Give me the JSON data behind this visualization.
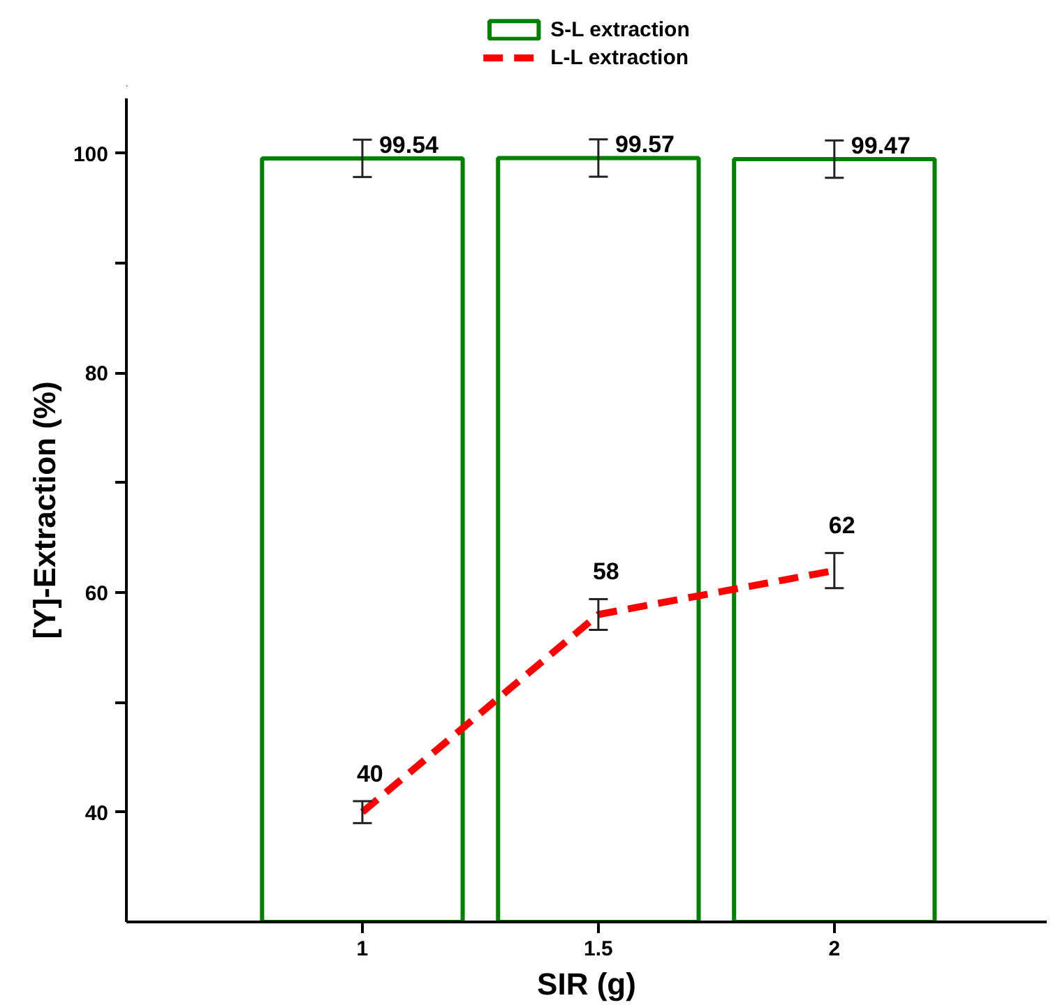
{
  "chart_data": {
    "type": "bar",
    "xlabel": "SIR (g)",
    "ylabel": "[Y]-Extraction (%)",
    "categories": [
      "1",
      "1.5",
      "2"
    ],
    "series": [
      {
        "name": "S-L extraction",
        "color": "#008000",
        "values": [
          99.54,
          99.57,
          99.47
        ],
        "errors": [
          1.7,
          1.7,
          1.7
        ]
      },
      {
        "name": "L-L extraction",
        "type": "line",
        "color": "#ff0000",
        "values": [
          40,
          58,
          62
        ],
        "errors": [
          1.0,
          1.4,
          1.6
        ],
        "line_style": "dashed",
        "marker": "none"
      }
    ],
    "ylim": [
      30,
      105
    ],
    "yticks": [
      40,
      {
        "value": 50,
        "label": null
      },
      60,
      {
        "value": 70,
        "label": null
      },
      80,
      {
        "value": 90,
        "label": null
      },
      100
    ],
    "data_labels": true,
    "grid": false,
    "legend": "top"
  }
}
